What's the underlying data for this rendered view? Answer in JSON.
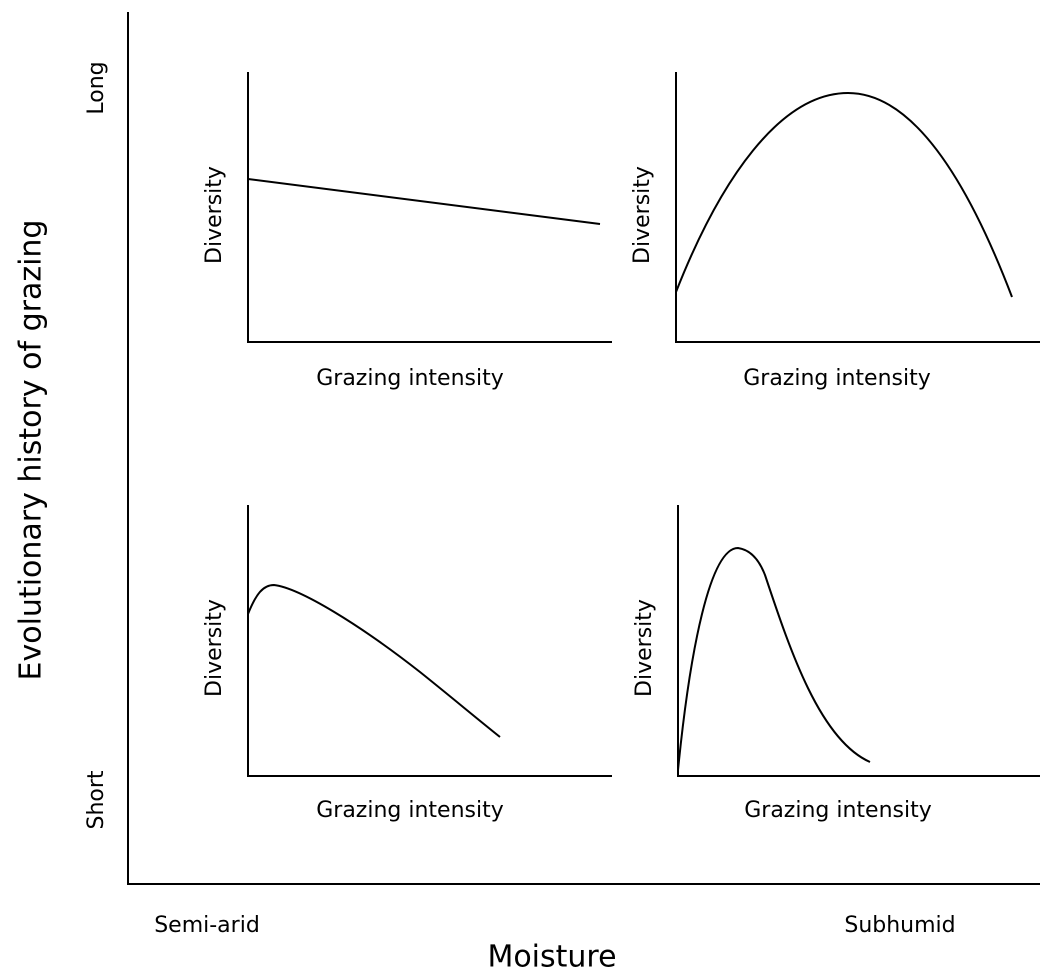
{
  "y_axis": {
    "label": "Evolutionary history of grazing",
    "top": "Long",
    "bottom": "Short"
  },
  "x_axis": {
    "label": "Moisture",
    "left": "Semi-arid",
    "right": "Subhumid"
  },
  "panels": [
    {
      "y_label": "Diversity",
      "x_label": "Grazing intensity"
    },
    {
      "y_label": "Diversity",
      "x_label": "Grazing intensity"
    },
    {
      "y_label": "Diversity",
      "x_label": "Grazing intensity"
    },
    {
      "y_label": "Diversity",
      "x_label": "Grazing intensity"
    }
  ]
}
